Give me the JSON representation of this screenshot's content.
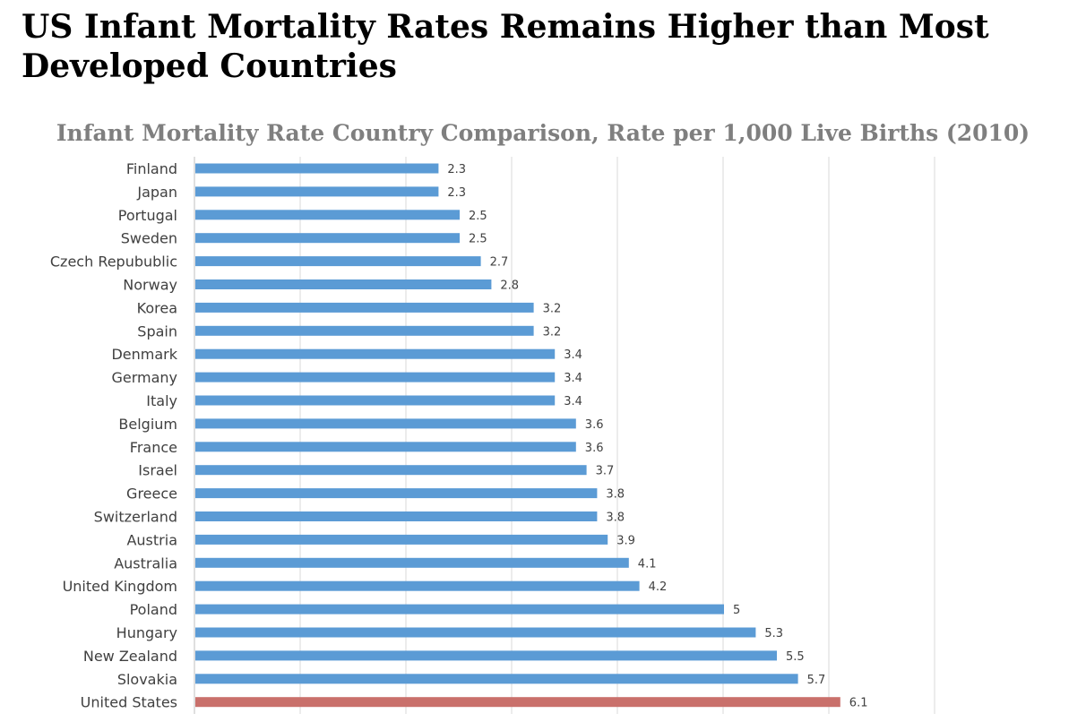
{
  "headline": "US Infant Mortality Rates Remains Higher than Most Developed Countries",
  "chart_data": {
    "type": "bar",
    "orientation": "horizontal",
    "title": "Infant Mortality Rate Country Comparison, Rate per 1,000 Live Births (2010)",
    "xlabel": "",
    "ylabel": "",
    "xlim": [
      0,
      7
    ],
    "grid": true,
    "legend": "none",
    "categories": [
      "Finland",
      "Japan",
      "Portugal",
      "Sweden",
      "Czech Repubublic",
      "Norway",
      "Korea",
      "Spain",
      "Denmark",
      "Germany",
      "Italy",
      "Belgium",
      "France",
      "Israel",
      "Greece",
      "Switzerland",
      "Austria",
      "Australia",
      "United Kingdom",
      "Poland",
      "Hungary",
      "New Zealand",
      "Slovakia",
      "United States"
    ],
    "values": [
      2.3,
      2.3,
      2.5,
      2.5,
      2.7,
      2.8,
      3.2,
      3.2,
      3.4,
      3.4,
      3.4,
      3.6,
      3.6,
      3.7,
      3.8,
      3.8,
      3.9,
      4.1,
      4.2,
      5,
      5.3,
      5.5,
      5.7,
      6.1
    ],
    "value_labels": [
      "2.3",
      "2.3",
      "2.5",
      "2.5",
      "2.7",
      "2.8",
      "3.2",
      "3.2",
      "3.4",
      "3.4",
      "3.4",
      "3.6",
      "3.6",
      "3.7",
      "3.8",
      "3.8",
      "3.9",
      "4.1",
      "4.2",
      "5",
      "5.3",
      "5.5",
      "5.7",
      "6.1"
    ],
    "colors": {
      "default": "#5b9bd5",
      "highlight": "#c9706b",
      "grid": "#d9d9d9",
      "axis": "#bfbfbf"
    },
    "highlight_category": "United States"
  }
}
